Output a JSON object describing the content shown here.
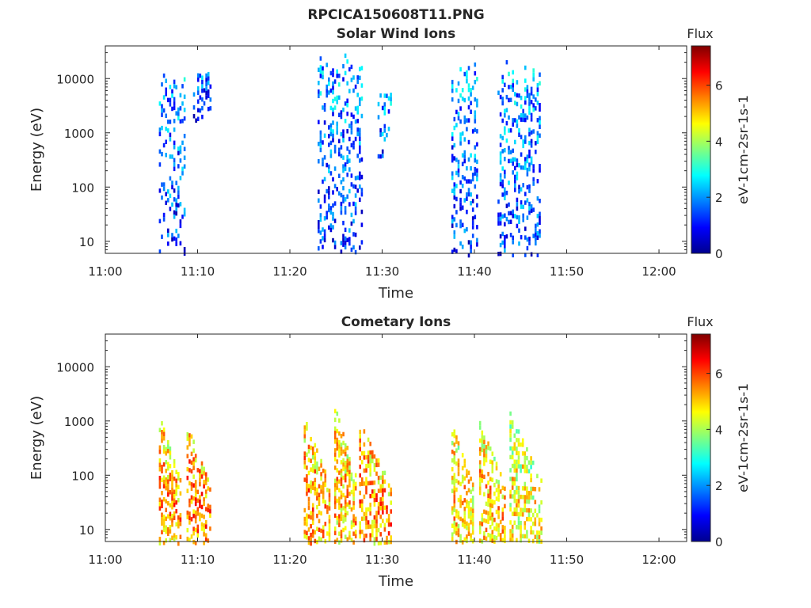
{
  "figure_title": "RPCICA150608T11.PNG",
  "chart_data": [
    {
      "type": "heatmap",
      "title": "Solar Wind Ions",
      "xlabel": "Time",
      "ylabel": "Energy (eV)",
      "x_ticks": [
        "11:00",
        "11:10",
        "11:20",
        "11:30",
        "11:40",
        "11:50",
        "12:00"
      ],
      "xlim_minutes": [
        0,
        63
      ],
      "y_ticks": [
        "10",
        "100",
        "1000",
        "10000"
      ],
      "y_tick_values": [
        10,
        100,
        1000,
        10000
      ],
      "yscale": "log",
      "ylim": [
        6,
        40000
      ],
      "colorbar": {
        "title": "Flux",
        "label": "eV-1cm-2sr-1s-1",
        "ticks": [
          "0",
          "2",
          "4",
          "6"
        ],
        "range": [
          0,
          7.4
        ],
        "colormap": "jet"
      },
      "bursts": [
        {
          "t_start": 5.8,
          "t_end": 8.8,
          "e_min": 6,
          "e_max": 16000,
          "flux_mean": 2.0
        },
        {
          "t_start": 9.5,
          "t_end": 11.5,
          "e_min": 1500,
          "e_max": 14000,
          "flux_mean": 1.8
        },
        {
          "t_start": 23.0,
          "t_end": 28.0,
          "e_min": 6,
          "e_max": 30000,
          "flux_mean": 2.0
        },
        {
          "t_start": 29.5,
          "t_end": 31.0,
          "e_min": 400,
          "e_max": 7000,
          "flux_mean": 2.2
        },
        {
          "t_start": 37.5,
          "t_end": 40.5,
          "e_min": 6,
          "e_max": 24000,
          "flux_mean": 2.0
        },
        {
          "t_start": 42.5,
          "t_end": 47.2,
          "e_min": 6,
          "e_max": 22000,
          "flux_mean": 2.1
        }
      ]
    },
    {
      "type": "heatmap",
      "title": "Cometary Ions",
      "xlabel": "Time",
      "ylabel": "Energy (eV)",
      "x_ticks": [
        "11:00",
        "11:10",
        "11:20",
        "11:30",
        "11:40",
        "11:50",
        "12:00"
      ],
      "xlim_minutes": [
        0,
        63
      ],
      "y_ticks": [
        "10",
        "100",
        "1000",
        "10000"
      ],
      "y_tick_values": [
        10,
        100,
        1000,
        10000
      ],
      "yscale": "log",
      "ylim": [
        6,
        40000
      ],
      "colorbar": {
        "title": "Flux",
        "label": "eV-1cm-2sr-1s-1",
        "ticks": [
          "0",
          "2",
          "4",
          "6"
        ],
        "range": [
          0,
          7.4
        ],
        "colormap": "jet"
      },
      "bursts": [
        {
          "t_start": 5.8,
          "t_end": 8.2,
          "e_min": 6,
          "e_max": 1300,
          "flux_mean": 4.5
        },
        {
          "t_start": 8.8,
          "t_end": 11.5,
          "e_min": 6,
          "e_max": 900,
          "flux_mean": 4.8
        },
        {
          "t_start": 21.5,
          "t_end": 24.5,
          "e_min": 6,
          "e_max": 1200,
          "flux_mean": 4.5
        },
        {
          "t_start": 24.8,
          "t_end": 27.3,
          "e_min": 6,
          "e_max": 2000,
          "flux_mean": 4.3
        },
        {
          "t_start": 27.5,
          "t_end": 31.0,
          "e_min": 6,
          "e_max": 1000,
          "flux_mean": 4.6
        },
        {
          "t_start": 37.5,
          "t_end": 40.0,
          "e_min": 6,
          "e_max": 900,
          "flux_mean": 4.2
        },
        {
          "t_start": 40.5,
          "t_end": 43.5,
          "e_min": 6,
          "e_max": 1000,
          "flux_mean": 4.3
        },
        {
          "t_start": 43.8,
          "t_end": 47.3,
          "e_min": 6,
          "e_max": 1500,
          "flux_mean": 3.8
        }
      ]
    }
  ]
}
